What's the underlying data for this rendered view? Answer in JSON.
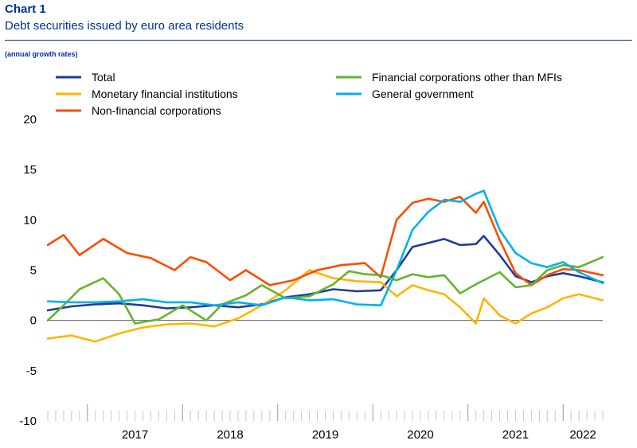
{
  "header": {
    "chart_number": "Chart 1",
    "title": "Debt securities issued by euro area residents",
    "units": "(annual growth rates)"
  },
  "chart_data": {
    "type": "line",
    "title": "Debt securities issued by euro area residents",
    "ylabel": "(annual growth rates)",
    "xlabel": "",
    "ylim": [
      -10,
      20
    ],
    "yticks": [
      -10,
      -5,
      0,
      5,
      10,
      15,
      20
    ],
    "xlim": [
      "2016-08",
      "2022-06"
    ],
    "x_category_labels": [
      "2017",
      "2018",
      "2019",
      "2020",
      "2021",
      "2022"
    ],
    "grid": false,
    "legend_position": "top",
    "series": [
      {
        "name": "Total",
        "color": "#1f3d99",
        "points": [
          [
            "2016-08",
            1.0
          ],
          [
            "2016-11",
            1.4
          ],
          [
            "2017-02",
            1.6
          ],
          [
            "2017-05",
            1.7
          ],
          [
            "2017-08",
            1.5
          ],
          [
            "2017-11",
            1.2
          ],
          [
            "2018-02",
            1.3
          ],
          [
            "2018-05",
            1.5
          ],
          [
            "2018-08",
            1.3
          ],
          [
            "2018-11",
            1.6
          ],
          [
            "2019-02",
            2.3
          ],
          [
            "2019-05",
            2.6
          ],
          [
            "2019-08",
            3.1
          ],
          [
            "2019-11",
            2.9
          ],
          [
            "2020-02",
            3.0
          ],
          [
            "2020-04",
            5.0
          ],
          [
            "2020-06",
            7.3
          ],
          [
            "2020-08",
            7.7
          ],
          [
            "2020-10",
            8.1
          ],
          [
            "2020-12",
            7.5
          ],
          [
            "2021-02",
            7.6
          ],
          [
            "2021-03",
            8.4
          ],
          [
            "2021-05",
            6.5
          ],
          [
            "2021-07",
            4.4
          ],
          [
            "2021-09",
            3.8
          ],
          [
            "2021-11",
            4.4
          ],
          [
            "2022-01",
            4.7
          ],
          [
            "2022-03",
            4.4
          ],
          [
            "2022-06",
            3.8
          ]
        ]
      },
      {
        "name": "Monetary financial institutions",
        "color": "#ffb400",
        "points": [
          [
            "2016-08",
            -1.8
          ],
          [
            "2016-11",
            -1.5
          ],
          [
            "2017-02",
            -2.1
          ],
          [
            "2017-05",
            -1.3
          ],
          [
            "2017-08",
            -0.7
          ],
          [
            "2017-11",
            -0.4
          ],
          [
            "2018-02",
            -0.3
          ],
          [
            "2018-05",
            -0.6
          ],
          [
            "2018-08",
            0.2
          ],
          [
            "2018-11",
            1.5
          ],
          [
            "2019-02",
            3.0
          ],
          [
            "2019-05",
            5.0
          ],
          [
            "2019-08",
            4.2
          ],
          [
            "2019-11",
            3.9
          ],
          [
            "2020-02",
            3.8
          ],
          [
            "2020-04",
            2.4
          ],
          [
            "2020-06",
            3.5
          ],
          [
            "2020-08",
            3.0
          ],
          [
            "2020-10",
            2.6
          ],
          [
            "2020-12",
            1.3
          ],
          [
            "2021-02",
            -0.3
          ],
          [
            "2021-03",
            2.2
          ],
          [
            "2021-05",
            0.5
          ],
          [
            "2021-07",
            -0.3
          ],
          [
            "2021-09",
            0.7
          ],
          [
            "2021-11",
            1.3
          ],
          [
            "2022-01",
            2.2
          ],
          [
            "2022-03",
            2.6
          ],
          [
            "2022-06",
            2.0
          ]
        ]
      },
      {
        "name": "Non-financial corporations",
        "color": "#ff4b00",
        "points": [
          [
            "2016-08",
            7.5
          ],
          [
            "2016-10",
            8.5
          ],
          [
            "2016-12",
            6.5
          ],
          [
            "2017-03",
            8.1
          ],
          [
            "2017-06",
            6.7
          ],
          [
            "2017-09",
            6.2
          ],
          [
            "2017-12",
            5.0
          ],
          [
            "2018-02",
            6.3
          ],
          [
            "2018-04",
            5.8
          ],
          [
            "2018-07",
            4.0
          ],
          [
            "2018-09",
            5.0
          ],
          [
            "2018-12",
            3.5
          ],
          [
            "2019-03",
            4.0
          ],
          [
            "2019-06",
            5.0
          ],
          [
            "2019-09",
            5.5
          ],
          [
            "2019-12",
            5.7
          ],
          [
            "2020-02",
            4.3
          ],
          [
            "2020-04",
            10.0
          ],
          [
            "2020-06",
            11.7
          ],
          [
            "2020-08",
            12.1
          ],
          [
            "2020-10",
            11.8
          ],
          [
            "2020-12",
            12.3
          ],
          [
            "2021-02",
            10.7
          ],
          [
            "2021-03",
            11.8
          ],
          [
            "2021-05",
            8.0
          ],
          [
            "2021-07",
            4.7
          ],
          [
            "2021-09",
            3.5
          ],
          [
            "2021-11",
            4.5
          ],
          [
            "2022-01",
            5.1
          ],
          [
            "2022-03",
            5.0
          ],
          [
            "2022-06",
            4.5
          ]
        ]
      },
      {
        "name": "Financial corporations other than MFIs",
        "color": "#65b32e",
        "points": [
          [
            "2016-08",
            0.0
          ],
          [
            "2016-10",
            1.5
          ],
          [
            "2016-12",
            3.1
          ],
          [
            "2017-03",
            4.2
          ],
          [
            "2017-05",
            2.6
          ],
          [
            "2017-07",
            -0.3
          ],
          [
            "2017-10",
            0.1
          ],
          [
            "2018-01",
            1.5
          ],
          [
            "2018-04",
            0.0
          ],
          [
            "2018-06",
            1.6
          ],
          [
            "2018-09",
            2.5
          ],
          [
            "2018-11",
            3.5
          ],
          [
            "2019-02",
            2.2
          ],
          [
            "2019-05",
            2.4
          ],
          [
            "2019-08",
            3.6
          ],
          [
            "2019-10",
            4.9
          ],
          [
            "2019-12",
            4.6
          ],
          [
            "2020-02",
            4.5
          ],
          [
            "2020-04",
            4.0
          ],
          [
            "2020-06",
            4.6
          ],
          [
            "2020-08",
            4.3
          ],
          [
            "2020-10",
            4.5
          ],
          [
            "2020-12",
            2.7
          ],
          [
            "2021-02",
            3.6
          ],
          [
            "2021-05",
            4.8
          ],
          [
            "2021-07",
            3.3
          ],
          [
            "2021-09",
            3.5
          ],
          [
            "2021-11",
            5.0
          ],
          [
            "2022-01",
            5.5
          ],
          [
            "2022-03",
            5.3
          ],
          [
            "2022-06",
            6.3
          ]
        ]
      },
      {
        "name": "General government",
        "color": "#00b1ea",
        "points": [
          [
            "2016-08",
            1.9
          ],
          [
            "2016-11",
            1.8
          ],
          [
            "2017-02",
            1.8
          ],
          [
            "2017-05",
            1.9
          ],
          [
            "2017-08",
            2.1
          ],
          [
            "2017-11",
            1.8
          ],
          [
            "2018-02",
            1.8
          ],
          [
            "2018-05",
            1.5
          ],
          [
            "2018-08",
            1.8
          ],
          [
            "2018-11",
            1.5
          ],
          [
            "2019-02",
            2.3
          ],
          [
            "2019-05",
            2.0
          ],
          [
            "2019-08",
            2.1
          ],
          [
            "2019-11",
            1.6
          ],
          [
            "2020-02",
            1.5
          ],
          [
            "2020-04",
            5.0
          ],
          [
            "2020-06",
            9.0
          ],
          [
            "2020-08",
            10.8
          ],
          [
            "2020-10",
            12.0
          ],
          [
            "2020-12",
            11.8
          ],
          [
            "2021-02",
            12.6
          ],
          [
            "2021-03",
            12.9
          ],
          [
            "2021-05",
            9.0
          ],
          [
            "2021-07",
            6.7
          ],
          [
            "2021-09",
            5.7
          ],
          [
            "2021-11",
            5.3
          ],
          [
            "2022-01",
            5.8
          ],
          [
            "2022-03",
            4.8
          ],
          [
            "2022-06",
            3.7
          ]
        ]
      }
    ]
  }
}
